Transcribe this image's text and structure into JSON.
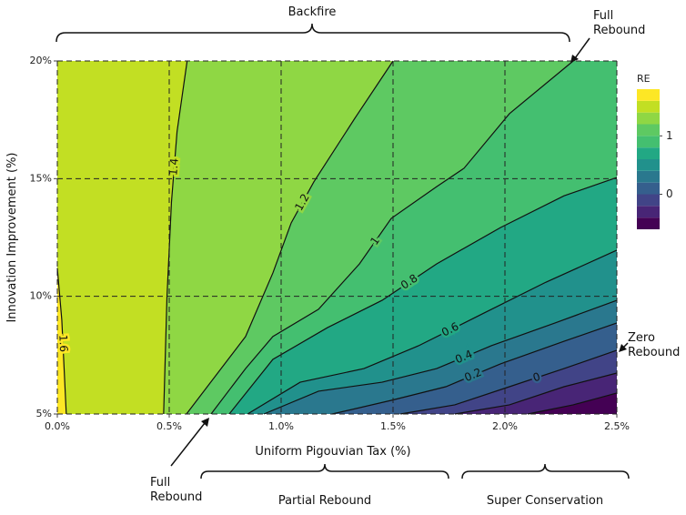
{
  "chart_data": {
    "type": "contour",
    "xlabel": "Uniform Pigouvian Tax (%)",
    "ylabel": "Innovation Improvement (%)",
    "xlim": [
      0,
      2.5
    ],
    "ylim": [
      5,
      20
    ],
    "xticks": [
      {
        "value": 0,
        "label": "0.0%"
      },
      {
        "value": 0.5,
        "label": "0.5%"
      },
      {
        "value": 1,
        "label": "1.0%"
      },
      {
        "value": 1.5,
        "label": "1.5%"
      },
      {
        "value": 2,
        "label": "2.0%"
      },
      {
        "value": 2.5,
        "label": "2.5%"
      }
    ],
    "yticks": [
      {
        "value": 5,
        "label": "5%"
      },
      {
        "value": 10,
        "label": "10%"
      },
      {
        "value": 15,
        "label": "15%"
      },
      {
        "value": 20,
        "label": "20%"
      }
    ],
    "grid": true,
    "levels": [
      -0.6,
      -0.4,
      -0.2,
      0,
      0.2,
      0.4,
      0.6,
      0.8,
      1,
      1.2,
      1.4,
      1.6,
      1.8
    ],
    "colors": [
      "#440154",
      "#482576",
      "#414487",
      "#355f8d",
      "#2a788e",
      "#21918c",
      "#22a884",
      "#44bf70",
      "#5ec962",
      "#8fd744",
      "#c2df23",
      "#fde725"
    ],
    "colorbar_label": "RE",
    "colorbar_ticks": [
      0,
      1
    ],
    "contours": [
      {
        "level": -0.4,
        "clabel": false,
        "x": [
          2.102,
          2.305,
          2.5
        ],
        "y": [
          5,
          5.39,
          5.89
        ]
      },
      {
        "level": -0.2,
        "clabel": false,
        "x": [
          1.776,
          2.02,
          2.264,
          2.5
        ],
        "y": [
          5,
          5.39,
          6.16,
          6.74
        ]
      },
      {
        "level": 0,
        "clabel": true,
        "x": [
          1.533,
          1.776,
          2.02,
          2.264,
          2.5
        ],
        "y": [
          5,
          5.39,
          6.16,
          6.93,
          7.71
        ]
      },
      {
        "level": 0.2,
        "clabel": true,
        "x": [
          1.228,
          1.492,
          1.736,
          1.98,
          2.264,
          2.5
        ],
        "y": [
          5,
          5.58,
          6.16,
          7.13,
          8.09,
          8.87
        ]
      },
      {
        "level": 0.4,
        "clabel": true,
        "x": [
          0.923,
          1.167,
          1.451,
          1.695,
          1.939,
          2.224,
          2.5
        ],
        "y": [
          5,
          5.97,
          6.35,
          6.93,
          7.9,
          8.87,
          9.83
        ]
      },
      {
        "level": 0.6,
        "clabel": true,
        "x": [
          0.85,
          1.085,
          1.37,
          1.614,
          1.898,
          2.183,
          2.5
        ],
        "y": [
          5,
          6.35,
          6.93,
          7.9,
          9.25,
          10.6,
          11.96
        ]
      },
      {
        "level": 0.8,
        "clabel": true,
        "x": [
          0.768,
          0.963,
          1.207,
          1.451,
          1.695,
          1.98,
          2.264,
          2.5
        ],
        "y": [
          5,
          7.32,
          8.67,
          9.83,
          11.38,
          12.92,
          14.27,
          15.05
        ]
      },
      {
        "level": 1,
        "clabel": true,
        "x": [
          0.687,
          0.841,
          0.963,
          1.167,
          1.35,
          1.492,
          1.695,
          1.817,
          2.02,
          2.305
        ],
        "y": [
          5,
          6.93,
          8.29,
          9.45,
          11.38,
          13.31,
          14.66,
          15.44,
          17.76,
          20
        ]
      },
      {
        "level": 1.2,
        "clabel": true,
        "x": [
          0.577,
          0.841,
          0.963,
          1.045,
          1.146,
          1.329,
          1.5
        ],
        "y": [
          5,
          8.29,
          10.99,
          13.12,
          14.86,
          17.56,
          20
        ]
      },
      {
        "level": 1.4,
        "clabel": true,
        "x": [
          0.475,
          0.49,
          0.51,
          0.535,
          0.58
        ],
        "y": [
          5,
          10,
          14,
          17,
          20
        ]
      },
      {
        "level": 1.6,
        "clabel": true,
        "x": [
          0.04,
          0.03,
          0.02,
          0
        ],
        "y": [
          5,
          7,
          9,
          11.2
        ]
      }
    ]
  },
  "annotations": {
    "backfire": "Backfire",
    "full_rebound_top": "Full Rebound",
    "zero_rebound": "Zero Rebound",
    "full_rebound_bottom": "Full Rebound",
    "partial_rebound": "Partial Rebound",
    "super_conservation": "Super Conservation"
  }
}
